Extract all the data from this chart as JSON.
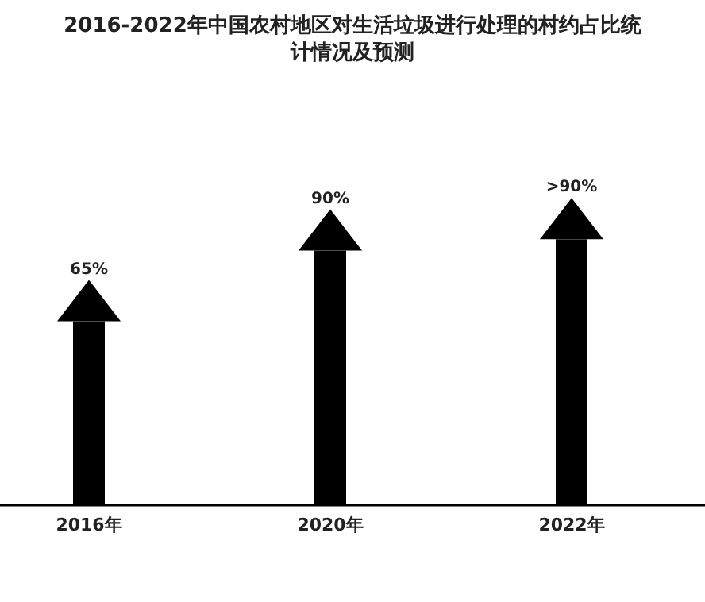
{
  "chart_data": {
    "type": "bar",
    "title": "2016-2022年中国农村地区对生活垃圾进行处理的村约占比统计情况及预测",
    "categories": [
      "2016年",
      "2020年",
      "2022年"
    ],
    "values": [
      65,
      90,
      94
    ],
    "value_labels": [
      "65%",
      "90%",
      ">90%"
    ],
    "color": "#000000"
  }
}
